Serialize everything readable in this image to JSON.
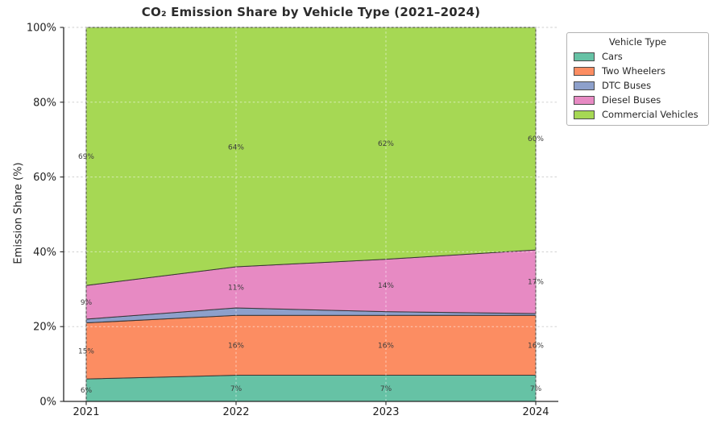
{
  "chart_data": {
    "type": "area",
    "stacked": true,
    "title": "CO₂ Emission Share by Vehicle Type (2021–2024)",
    "ylabel": "Emission Share (%)",
    "xlabel": "",
    "x": [
      "2021",
      "2022",
      "2023",
      "2024"
    ],
    "y_ticks": [
      0,
      20,
      40,
      60,
      80,
      100
    ],
    "y_tick_labels": [
      "0%",
      "20%",
      "40%",
      "60%",
      "80%",
      "100%"
    ],
    "ylim": [
      0,
      100
    ],
    "grid": true,
    "legend": {
      "title": "Vehicle Type",
      "position": "upper-right-outside"
    },
    "series": [
      {
        "name": "Cars",
        "color": "#66c2a5",
        "values": [
          6,
          7,
          7,
          7
        ],
        "labels": [
          "6%",
          "7%",
          "7%",
          "7%"
        ]
      },
      {
        "name": "Two Wheelers",
        "color": "#fc8d62",
        "values": [
          15,
          16,
          16,
          16
        ],
        "labels": [
          "15%",
          "16%",
          "16%",
          "16%"
        ]
      },
      {
        "name": "DTC Buses",
        "color": "#8da0cb",
        "values": [
          1,
          2,
          1,
          0.5
        ],
        "labels": [
          "",
          "",
          "",
          ""
        ]
      },
      {
        "name": "Diesel Buses",
        "color": "#e78ac3",
        "values": [
          9,
          11,
          14,
          17
        ],
        "labels": [
          "9%",
          "11%",
          "14%",
          "17%"
        ]
      },
      {
        "name": "Commercial Vehicles",
        "color": "#a6d854",
        "values": [
          69,
          64,
          62,
          60
        ],
        "labels": [
          "69%",
          "64%",
          "62%",
          "60%"
        ]
      }
    ],
    "text_color": "#262626"
  }
}
